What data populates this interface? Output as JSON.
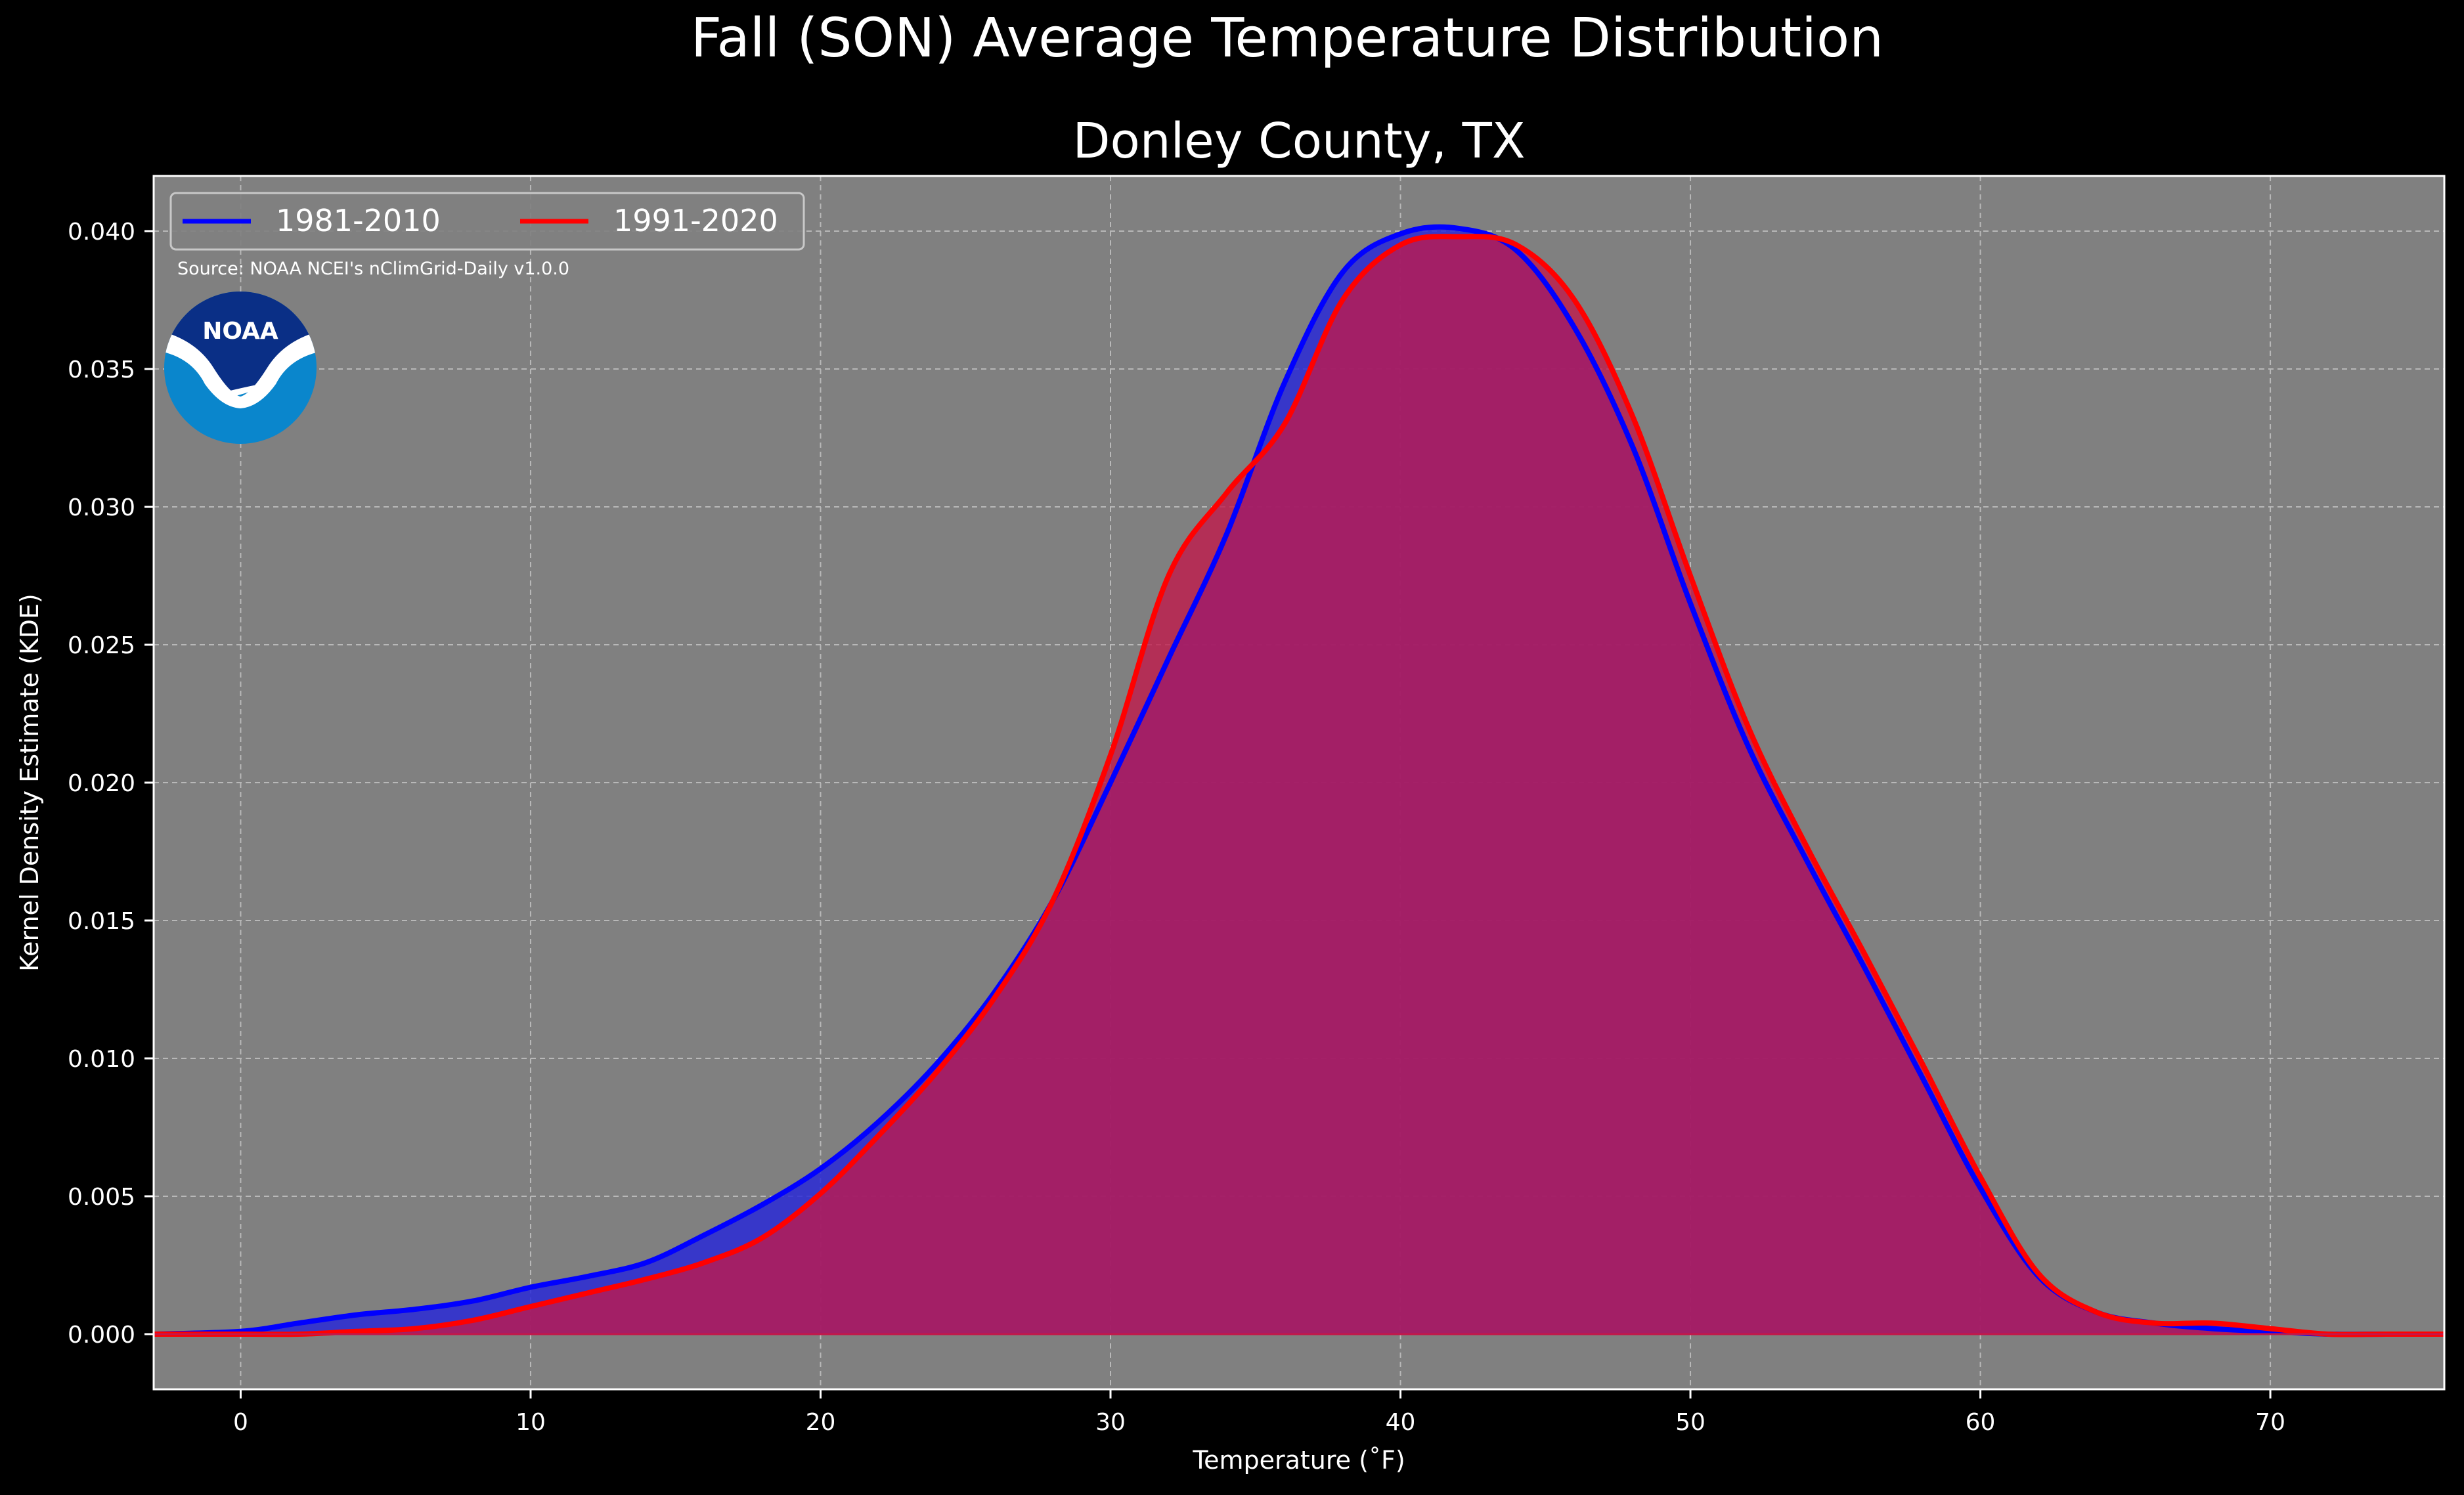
{
  "chart_data": {
    "type": "area",
    "title": "Fall (SON) Average Temperature Distribution",
    "subtitle": "Donley County, TX",
    "xlabel": "Temperature ($^\\circ$F)",
    "xlabel_display": "Temperature (˚F)",
    "ylabel": "Kernel Density Estimate (KDE)",
    "xlim": [
      -3,
      76
    ],
    "ylim": [
      -0.002,
      0.042
    ],
    "xticks": [
      0,
      10,
      20,
      30,
      40,
      50,
      60,
      70
    ],
    "xtick_labels": [
      "0",
      "10",
      "20",
      "30",
      "40",
      "50",
      "60",
      "70"
    ],
    "yticks": [
      0.0,
      0.005,
      0.01,
      0.015,
      0.02,
      0.025,
      0.03,
      0.035,
      0.04
    ],
    "ytick_labels": [
      "0.000",
      "0.005",
      "0.010",
      "0.015",
      "0.020",
      "0.025",
      "0.030",
      "0.035",
      "0.040"
    ],
    "grid": true,
    "legend_position": "top-left",
    "annotation": "Source: NOAA NCEI's nClimGrid-Daily v1.0.0",
    "logo_text": "NOAA",
    "colors": {
      "figure_bg": "#000000",
      "axes_bg": "#808080",
      "series_1981": "#0000ff",
      "series_1991": "#ff0000",
      "fill_1981": "#2a2ad6",
      "fill_1991": "#c2184a",
      "logo_dark": "#0a2f86",
      "logo_light": "#0a86cc"
    },
    "series": [
      {
        "name": "1981-2010",
        "color": "#0000ff",
        "x": [
          -3,
          0,
          2,
          4,
          6,
          8,
          10,
          12,
          14,
          16,
          18,
          20,
          22,
          24,
          26,
          28,
          30,
          32,
          34,
          36,
          38,
          40,
          42,
          44,
          46,
          48,
          50,
          52,
          54,
          56,
          58,
          60,
          62,
          64,
          66,
          68,
          70,
          72,
          74,
          76
        ],
        "y": [
          0.0,
          0.0001,
          0.0004,
          0.0007,
          0.0009,
          0.0012,
          0.0017,
          0.0021,
          0.0026,
          0.0036,
          0.0047,
          0.006,
          0.0077,
          0.0098,
          0.0124,
          0.0157,
          0.02,
          0.0245,
          0.029,
          0.0345,
          0.0385,
          0.0399,
          0.0401,
          0.0393,
          0.0365,
          0.0322,
          0.0265,
          0.0213,
          0.0172,
          0.0133,
          0.0093,
          0.0053,
          0.0021,
          0.0008,
          0.0004,
          0.0002,
          0.0001,
          0.0,
          0.0,
          0.0
        ]
      },
      {
        "name": "1991-2020",
        "color": "#ff0000",
        "x": [
          -3,
          0,
          2,
          4,
          6,
          8,
          10,
          12,
          14,
          16,
          18,
          20,
          22,
          24,
          26,
          28,
          30,
          32,
          34,
          36,
          38,
          40,
          42,
          44,
          46,
          48,
          50,
          52,
          54,
          56,
          58,
          60,
          62,
          64,
          66,
          68,
          70,
          72,
          74,
          76
        ],
        "y": [
          0.0,
          0.0,
          0.0,
          0.0001,
          0.0002,
          0.0005,
          0.001,
          0.0015,
          0.002,
          0.0026,
          0.0035,
          0.0051,
          0.0072,
          0.0095,
          0.0122,
          0.0157,
          0.021,
          0.0275,
          0.0305,
          0.033,
          0.0375,
          0.0395,
          0.0398,
          0.0395,
          0.0375,
          0.0333,
          0.0275,
          0.022,
          0.0177,
          0.0138,
          0.0098,
          0.0057,
          0.0022,
          0.0008,
          0.0004,
          0.0004,
          0.0002,
          0.0,
          0.0,
          0.0
        ]
      }
    ]
  }
}
